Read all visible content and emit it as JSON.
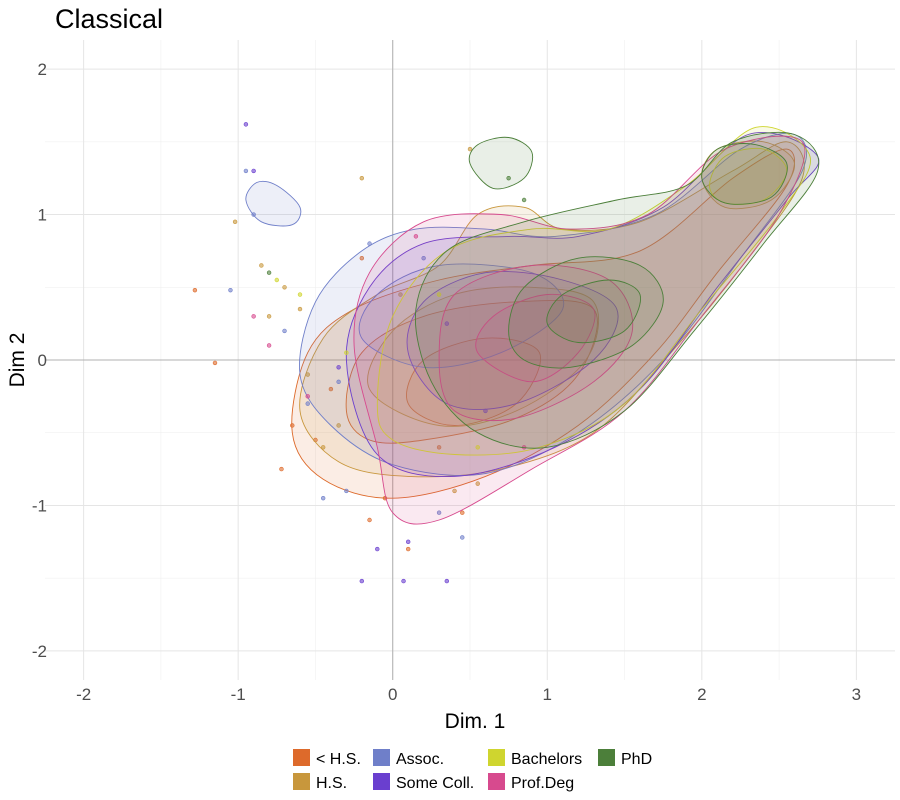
{
  "chart_data": {
    "type": "scatter",
    "title": "Classical",
    "xlabel": "Dim. 1",
    "ylabel": "Dim 2",
    "xlim": [
      -2.25,
      3.25
    ],
    "ylim": [
      -2.2,
      2.2
    ],
    "x_ticks": [
      -2,
      -1,
      0,
      1,
      2,
      3
    ],
    "y_ticks": [
      -2,
      -1,
      0,
      1,
      2
    ],
    "x_tick_labels": [
      "-2",
      "-1",
      "0",
      "1",
      "2",
      "3"
    ],
    "y_tick_labels": [
      "-2",
      "-1",
      "0",
      "1",
      "2"
    ],
    "grid": true,
    "reference_lines": {
      "x": 0,
      "y": 0
    },
    "legend_position": "bottom",
    "series": [
      {
        "name": "< H.S.",
        "color": "#dd6a2b",
        "contours": [
          [
            [
              -0.65,
              -0.5
            ],
            [
              -0.55,
              0.05
            ],
            [
              -0.25,
              0.35
            ],
            [
              0.3,
              0.55
            ],
            [
              0.9,
              0.65
            ],
            [
              1.6,
              0.75
            ],
            [
              2.2,
              1.25
            ],
            [
              2.55,
              1.45
            ],
            [
              2.55,
              1.2
            ],
            [
              2.1,
              0.6
            ],
            [
              1.7,
              0.05
            ],
            [
              1.2,
              -0.45
            ],
            [
              0.6,
              -0.8
            ],
            [
              0.0,
              -0.95
            ],
            [
              -0.45,
              -0.82
            ]
          ],
          [
            [
              -0.3,
              -0.35
            ],
            [
              -0.2,
              0.05
            ],
            [
              0.2,
              0.3
            ],
            [
              0.8,
              0.4
            ],
            [
              1.3,
              0.35
            ],
            [
              1.2,
              -0.1
            ],
            [
              0.8,
              -0.4
            ],
            [
              0.2,
              -0.55
            ],
            [
              -0.15,
              -0.55
            ]
          ],
          [
            [
              0.1,
              -0.3
            ],
            [
              0.2,
              0.0
            ],
            [
              0.6,
              0.15
            ],
            [
              0.95,
              0.05
            ],
            [
              0.8,
              -0.3
            ],
            [
              0.4,
              -0.45
            ]
          ]
        ],
        "points": [
          [
            -1.28,
            0.48
          ],
          [
            -1.15,
            -0.02
          ],
          [
            -0.72,
            -0.75
          ],
          [
            -0.65,
            -0.45
          ],
          [
            -0.5,
            -0.55
          ],
          [
            -0.4,
            -0.2
          ],
          [
            -0.15,
            -1.1
          ],
          [
            0.1,
            -1.3
          ],
          [
            -0.05,
            -0.95
          ],
          [
            0.3,
            -0.6
          ],
          [
            0.45,
            -1.05
          ],
          [
            -0.2,
            0.7
          ]
        ]
      },
      {
        "name": "H.S.",
        "color": "#c8973c",
        "contours": [
          [
            [
              -0.6,
              -0.35
            ],
            [
              -0.45,
              0.15
            ],
            [
              -0.1,
              0.45
            ],
            [
              0.3,
              0.65
            ],
            [
              0.55,
              1.0
            ],
            [
              0.85,
              1.05
            ],
            [
              1.1,
              0.9
            ],
            [
              1.6,
              0.95
            ],
            [
              2.2,
              1.3
            ],
            [
              2.55,
              1.5
            ],
            [
              2.65,
              1.25
            ],
            [
              2.3,
              0.7
            ],
            [
              1.8,
              0.05
            ],
            [
              1.3,
              -0.5
            ],
            [
              0.7,
              -0.75
            ],
            [
              0.1,
              -0.8
            ],
            [
              -0.35,
              -0.7
            ]
          ],
          [
            [
              -0.15,
              -0.2
            ],
            [
              0.0,
              0.2
            ],
            [
              0.4,
              0.45
            ],
            [
              0.9,
              0.5
            ],
            [
              1.3,
              0.4
            ],
            [
              1.25,
              0.0
            ],
            [
              0.8,
              -0.35
            ],
            [
              0.3,
              -0.45
            ]
          ],
          [
            [
              2.0,
              1.25
            ],
            [
              2.1,
              1.45
            ],
            [
              2.4,
              1.5
            ],
            [
              2.6,
              1.35
            ],
            [
              2.45,
              1.1
            ],
            [
              2.15,
              1.05
            ]
          ]
        ],
        "points": [
          [
            -1.02,
            0.95
          ],
          [
            -0.85,
            0.65
          ],
          [
            -0.8,
            0.3
          ],
          [
            -0.7,
            0.5
          ],
          [
            -0.6,
            0.35
          ],
          [
            -0.55,
            -0.1
          ],
          [
            -0.45,
            -0.6
          ],
          [
            -0.35,
            -0.45
          ],
          [
            -0.2,
            1.25
          ],
          [
            0.05,
            0.45
          ],
          [
            0.5,
            1.45
          ],
          [
            0.4,
            -0.9
          ],
          [
            0.55,
            -0.85
          ]
        ]
      },
      {
        "name": "Assoc.",
        "color": "#6f7fc9",
        "contours": [
          [
            [
              -0.6,
              -0.1
            ],
            [
              -0.5,
              0.4
            ],
            [
              -0.2,
              0.75
            ],
            [
              0.15,
              0.9
            ],
            [
              0.6,
              0.9
            ],
            [
              1.05,
              0.85
            ],
            [
              1.7,
              1.0
            ],
            [
              2.25,
              1.45
            ],
            [
              2.6,
              1.55
            ],
            [
              2.65,
              1.3
            ],
            [
              2.25,
              0.7
            ],
            [
              1.75,
              0.0
            ],
            [
              1.2,
              -0.5
            ],
            [
              0.6,
              -0.78
            ],
            [
              0.0,
              -0.72
            ],
            [
              -0.4,
              -0.45
            ]
          ],
          [
            [
              -0.95,
              1.1
            ],
            [
              -0.88,
              1.22
            ],
            [
              -0.75,
              1.2
            ],
            [
              -0.6,
              1.05
            ],
            [
              -0.65,
              0.93
            ],
            [
              -0.85,
              0.95
            ]
          ],
          [
            [
              -0.2,
              0.15
            ],
            [
              -0.1,
              0.45
            ],
            [
              0.3,
              0.65
            ],
            [
              0.9,
              0.6
            ],
            [
              1.1,
              0.35
            ],
            [
              0.7,
              0.05
            ],
            [
              0.2,
              -0.05
            ]
          ]
        ],
        "points": [
          [
            -1.05,
            0.48
          ],
          [
            -0.95,
            1.3
          ],
          [
            -0.9,
            1.0
          ],
          [
            -0.7,
            0.2
          ],
          [
            -0.55,
            -0.3
          ],
          [
            -0.45,
            -0.95
          ],
          [
            -0.35,
            -0.15
          ],
          [
            -0.3,
            -0.9
          ],
          [
            -0.15,
            0.8
          ],
          [
            0.3,
            -1.05
          ],
          [
            0.45,
            -1.22
          ],
          [
            0.2,
            0.7
          ]
        ]
      },
      {
        "name": "Some Coll.",
        "color": "#6a3fcf",
        "contours": [
          [
            [
              -0.3,
              0.0
            ],
            [
              -0.15,
              0.5
            ],
            [
              0.2,
              0.8
            ],
            [
              0.75,
              0.85
            ],
            [
              1.2,
              0.85
            ],
            [
              1.75,
              1.05
            ],
            [
              2.3,
              1.55
            ],
            [
              2.75,
              1.4
            ],
            [
              2.55,
              1.1
            ],
            [
              2.1,
              0.5
            ],
            [
              1.6,
              -0.2
            ],
            [
              1.05,
              -0.6
            ],
            [
              0.4,
              -0.8
            ],
            [
              -0.1,
              -0.65
            ]
          ],
          [
            [
              0.1,
              0.05
            ],
            [
              0.2,
              0.4
            ],
            [
              0.6,
              0.6
            ],
            [
              1.1,
              0.55
            ],
            [
              1.45,
              0.35
            ],
            [
              1.3,
              0.0
            ],
            [
              0.8,
              -0.3
            ],
            [
              0.35,
              -0.3
            ]
          ]
        ],
        "points": [
          [
            -0.95,
            1.62
          ],
          [
            -0.9,
            1.3
          ],
          [
            -0.35,
            -0.05
          ],
          [
            -0.1,
            -1.3
          ],
          [
            -0.2,
            -1.52
          ],
          [
            0.1,
            -1.25
          ],
          [
            0.35,
            -1.52
          ],
          [
            0.07,
            -1.52
          ],
          [
            0.35,
            0.25
          ],
          [
            0.6,
            -0.35
          ]
        ]
      },
      {
        "name": "Bachelors",
        "color": "#cfd52f",
        "contours": [
          [
            [
              -0.1,
              -0.3
            ],
            [
              0.0,
              0.3
            ],
            [
              0.35,
              0.75
            ],
            [
              0.9,
              0.9
            ],
            [
              1.4,
              0.9
            ],
            [
              1.9,
              1.2
            ],
            [
              2.35,
              1.6
            ],
            [
              2.7,
              1.4
            ],
            [
              2.5,
              1.0
            ],
            [
              2.0,
              0.35
            ],
            [
              1.5,
              -0.3
            ],
            [
              0.95,
              -0.6
            ],
            [
              0.4,
              -0.65
            ],
            [
              0.0,
              -0.55
            ]
          ],
          [
            [
              2.05,
              1.2
            ],
            [
              2.15,
              1.4
            ],
            [
              2.4,
              1.45
            ],
            [
              2.55,
              1.3
            ],
            [
              2.4,
              1.1
            ],
            [
              2.15,
              1.08
            ]
          ]
        ],
        "points": [
          [
            -0.75,
            0.55
          ],
          [
            -0.6,
            0.45
          ],
          [
            -0.3,
            0.05
          ],
          [
            0.3,
            0.45
          ],
          [
            0.55,
            -0.6
          ]
        ]
      },
      {
        "name": "Prof.Deg",
        "color": "#d74a8e",
        "contours": [
          [
            [
              -0.25,
              0.1
            ],
            [
              -0.15,
              0.6
            ],
            [
              0.2,
              0.95
            ],
            [
              0.7,
              1.0
            ],
            [
              1.15,
              0.9
            ],
            [
              1.65,
              1.0
            ],
            [
              2.15,
              1.45
            ],
            [
              2.65,
              1.5
            ],
            [
              2.5,
              1.0
            ],
            [
              2.0,
              0.3
            ],
            [
              1.5,
              -0.35
            ],
            [
              0.9,
              -0.75
            ],
            [
              0.3,
              -1.1
            ],
            [
              0.0,
              -1.05
            ],
            [
              -0.1,
              -0.6
            ]
          ],
          [
            [
              0.3,
              0.0
            ],
            [
              0.4,
              0.45
            ],
            [
              0.9,
              0.65
            ],
            [
              1.4,
              0.55
            ],
            [
              1.55,
              0.2
            ],
            [
              1.3,
              -0.15
            ],
            [
              0.8,
              -0.4
            ],
            [
              0.4,
              -0.35
            ]
          ],
          [
            [
              0.55,
              0.05
            ],
            [
              0.65,
              0.3
            ],
            [
              1.0,
              0.45
            ],
            [
              1.3,
              0.35
            ],
            [
              1.2,
              0.05
            ],
            [
              0.9,
              -0.15
            ]
          ]
        ],
        "points": [
          [
            -0.9,
            0.3
          ],
          [
            -0.8,
            0.1
          ],
          [
            -0.55,
            -0.25
          ],
          [
            0.15,
            0.85
          ],
          [
            0.85,
            -0.6
          ]
        ]
      },
      {
        "name": "PhD",
        "color": "#4c7f3a",
        "contours": [
          [
            [
              0.15,
              0.35
            ],
            [
              0.35,
              0.75
            ],
            [
              0.85,
              0.95
            ],
            [
              1.45,
              1.1
            ],
            [
              1.9,
              1.2
            ],
            [
              2.2,
              1.5
            ],
            [
              2.6,
              1.55
            ],
            [
              2.75,
              1.3
            ],
            [
              2.4,
              0.8
            ],
            [
              1.95,
              0.2
            ],
            [
              1.5,
              -0.35
            ],
            [
              1.0,
              -0.6
            ],
            [
              0.55,
              -0.5
            ],
            [
              0.25,
              -0.15
            ]
          ],
          [
            [
              0.5,
              1.35
            ],
            [
              0.55,
              1.48
            ],
            [
              0.75,
              1.53
            ],
            [
              0.9,
              1.43
            ],
            [
              0.85,
              1.25
            ],
            [
              0.65,
              1.18
            ]
          ],
          [
            [
              0.75,
              0.2
            ],
            [
              0.85,
              0.5
            ],
            [
              1.2,
              0.7
            ],
            [
              1.6,
              0.65
            ],
            [
              1.75,
              0.4
            ],
            [
              1.55,
              0.1
            ],
            [
              1.15,
              -0.05
            ],
            [
              0.85,
              0.0
            ]
          ],
          [
            [
              1.0,
              0.25
            ],
            [
              1.1,
              0.45
            ],
            [
              1.4,
              0.55
            ],
            [
              1.6,
              0.45
            ],
            [
              1.5,
              0.2
            ],
            [
              1.2,
              0.12
            ]
          ],
          [
            [
              2.0,
              1.25
            ],
            [
              2.1,
              1.45
            ],
            [
              2.35,
              1.48
            ],
            [
              2.55,
              1.35
            ],
            [
              2.45,
              1.12
            ],
            [
              2.15,
              1.08
            ]
          ]
        ],
        "points": [
          [
            -0.8,
            0.6
          ],
          [
            0.75,
            1.25
          ],
          [
            0.85,
            1.1
          ]
        ]
      }
    ]
  }
}
